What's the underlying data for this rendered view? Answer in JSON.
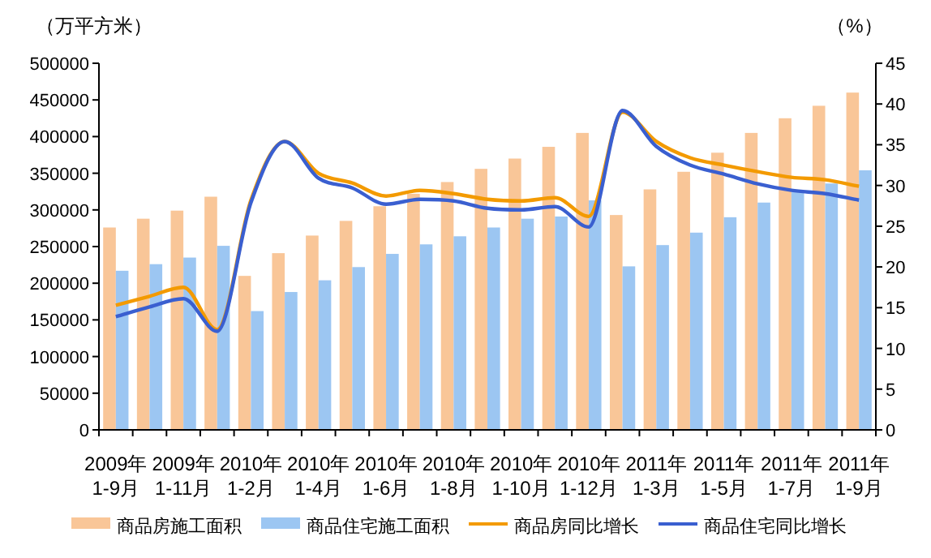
{
  "chart_data": {
    "type": "bar",
    "ylabel": "（万平方米）",
    "y2label": "（%）",
    "categories": [
      "2009年\n1-9月",
      null,
      "2009年\n1-11月",
      null,
      "2010年\n1-2月",
      null,
      "2010年\n1-4月",
      null,
      "2010年\n1-6月",
      null,
      "2010年\n1-8月",
      null,
      "2010年\n1-10月",
      null,
      "2010年\n1-12月",
      null,
      "2011年\n1-3月",
      null,
      "2011年\n1-5月",
      null,
      "2011年\n1-7月",
      null,
      "2011年\n1-9月"
    ],
    "series": [
      {
        "name": "商品房施工面积",
        "color": "#f9c698",
        "values": [
          276000,
          288000,
          299000,
          318000,
          210000,
          241000,
          265000,
          285000,
          305000,
          322000,
          338000,
          356000,
          370000,
          386000,
          405000,
          293000,
          328000,
          352000,
          378000,
          405000,
          425000,
          442000,
          460000
        ]
      },
      {
        "name": "商品住宅施工面积",
        "color": "#9cc6f2",
        "values": [
          217000,
          226000,
          235000,
          251000,
          162000,
          188000,
          204000,
          222000,
          240000,
          253000,
          264000,
          276000,
          288000,
          291000,
          313000,
          223000,
          252000,
          269000,
          290000,
          310000,
          324000,
          336000,
          354000
        ]
      },
      {
        "name": "商品房同比增长",
        "type": "line",
        "axis": "y2",
        "color": "#f39a00",
        "values": [
          15.3,
          16.4,
          17.5,
          12.3,
          28.2,
          35.4,
          31.5,
          30.3,
          28.7,
          29.4,
          29.0,
          28.3,
          28.1,
          28.5,
          26.2,
          39.0,
          35.4,
          33.4,
          32.5,
          31.7,
          31.0,
          30.7,
          29.9
        ]
      },
      {
        "name": "商品住宅同比增长",
        "type": "line",
        "axis": "y2",
        "color": "#3a5fd0",
        "values": [
          13.9,
          15.1,
          16.1,
          12.1,
          27.9,
          35.4,
          30.9,
          29.7,
          27.7,
          28.3,
          28.1,
          27.2,
          27.0,
          27.4,
          24.9,
          39.2,
          34.8,
          32.5,
          31.4,
          30.2,
          29.4,
          29.0,
          28.2
        ]
      }
    ],
    "ylim": [
      0,
      500000
    ],
    "yticks": [
      0,
      50000,
      100000,
      150000,
      200000,
      250000,
      300000,
      350000,
      400000,
      450000,
      500000
    ],
    "y2lim": [
      0,
      45
    ],
    "y2ticks": [
      0,
      5,
      10,
      15,
      20,
      25,
      30,
      35,
      40,
      45
    ],
    "grid": false,
    "legend": "bottom",
    "marker": "none",
    "line_style": "solid"
  }
}
